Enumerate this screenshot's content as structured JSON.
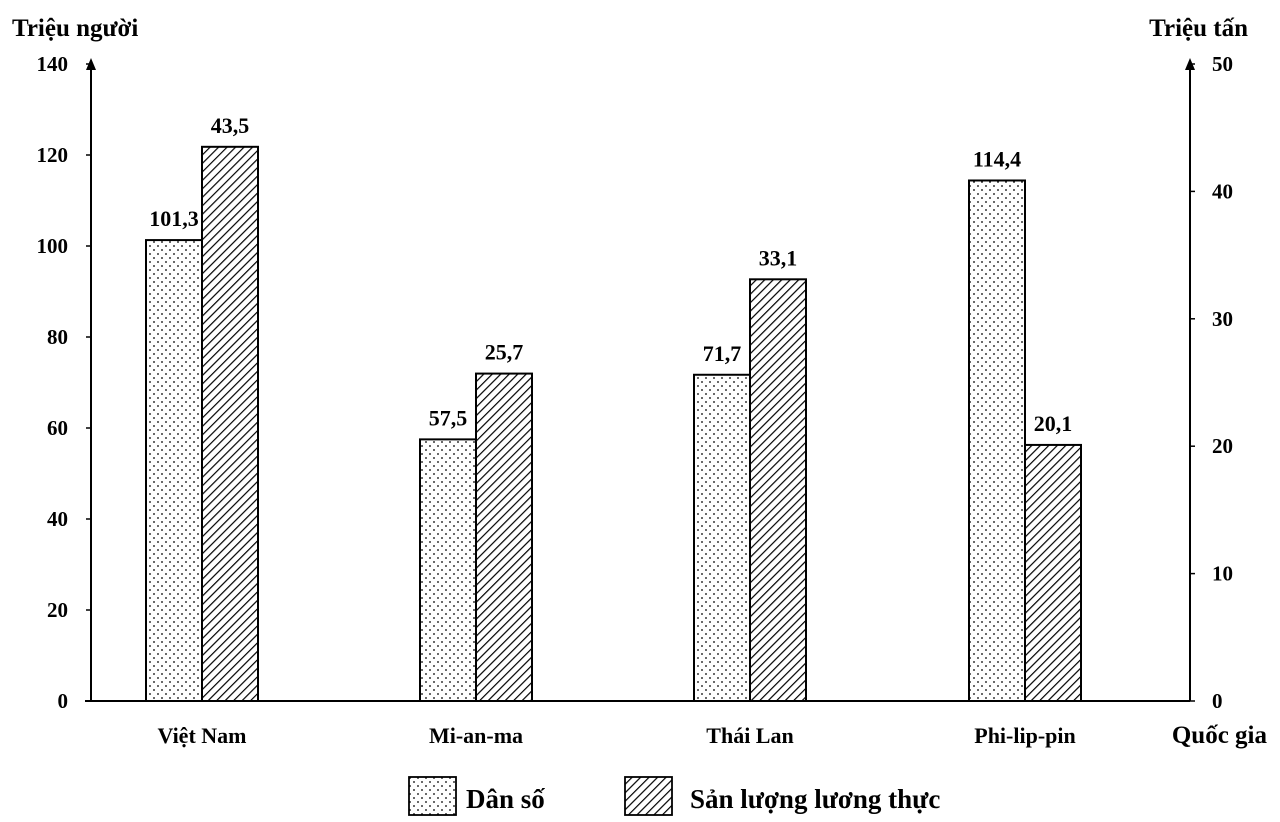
{
  "chart_data": {
    "type": "bar",
    "categories": [
      "Việt Nam",
      "Mi-an-ma",
      "Thái Lan",
      "Phi-lip-pin"
    ],
    "xlabel": "Quốc gia",
    "left_axis": {
      "title": "Triệu người",
      "ticks": [
        "0",
        "20",
        "40",
        "60",
        "80",
        "100",
        "120",
        "140"
      ],
      "min": 0,
      "max": 140
    },
    "right_axis": {
      "title": "Triệu tấn",
      "ticks": [
        "0",
        "10",
        "20",
        "30",
        "40",
        "50"
      ],
      "min": 0,
      "max": 50
    },
    "series": [
      {
        "name": "Dân số",
        "axis": "left",
        "pattern": "dots",
        "values": [
          101.3,
          57.5,
          71.7,
          114.4
        ],
        "labels": [
          "101,3",
          "57,5",
          "71,7",
          "114,4"
        ]
      },
      {
        "name": "Sản lượng lương thực",
        "axis": "right",
        "pattern": "hatch",
        "values": [
          43.5,
          25.7,
          33.1,
          20.1
        ],
        "labels": [
          "43,5",
          "25,7",
          "33,1",
          "20,1"
        ]
      }
    ],
    "legend_position": "bottom",
    "grid": false
  }
}
